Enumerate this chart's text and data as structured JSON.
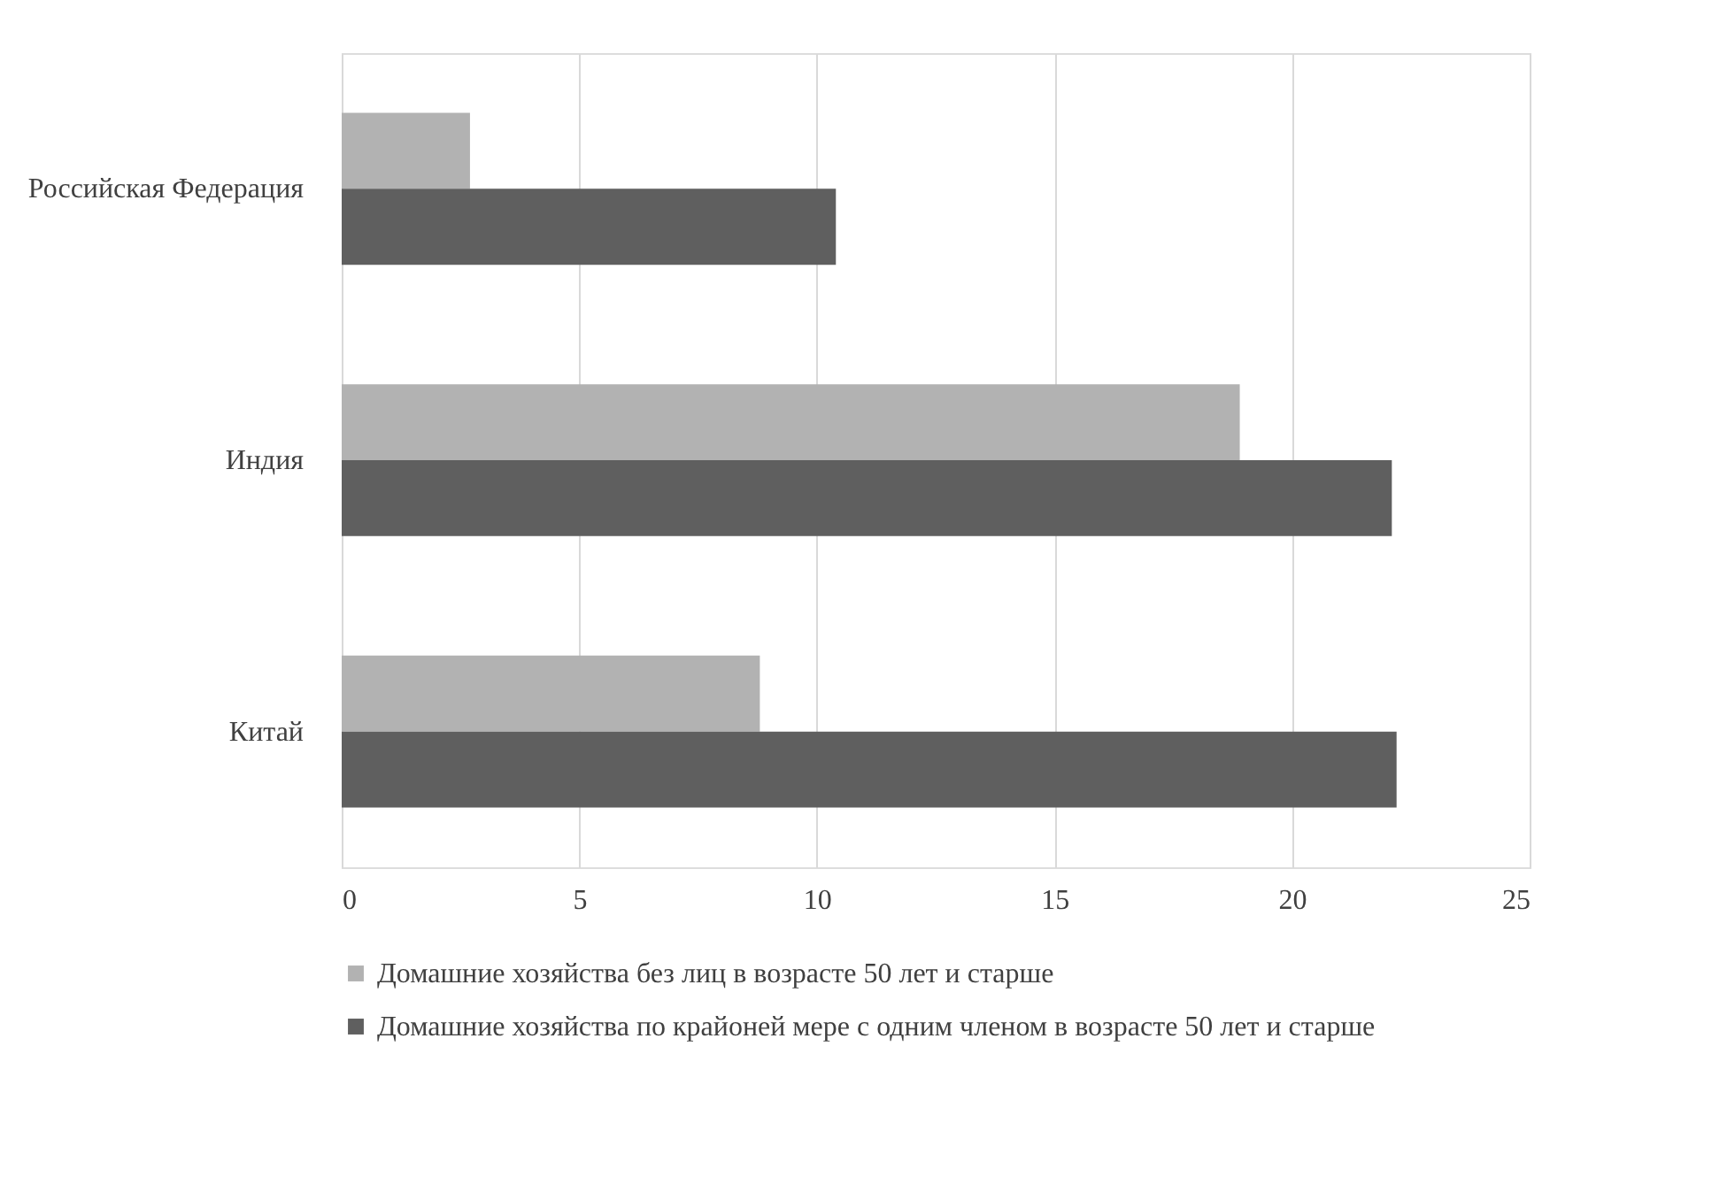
{
  "chart_data": {
    "type": "bar",
    "orientation": "horizontal",
    "categories": [
      "Российская Федерация",
      "Индия",
      "Китай"
    ],
    "series": [
      {
        "name": "Домашние хозяйства без лиц в возрасте 50 лет и старше",
        "color": "#b2b2b2",
        "values": [
          2.7,
          18.9,
          8.8
        ]
      },
      {
        "name": "Домашние хозяйства по крайоней мере с одним членом в возрасте 50 лет и старше",
        "color": "#5f5f5f",
        "values": [
          10.4,
          22.1,
          22.2
        ]
      }
    ],
    "xlim": [
      0,
      25
    ],
    "xticks": [
      0,
      5,
      10,
      15,
      20,
      25
    ],
    "grid": "x",
    "legend": "bottom"
  }
}
